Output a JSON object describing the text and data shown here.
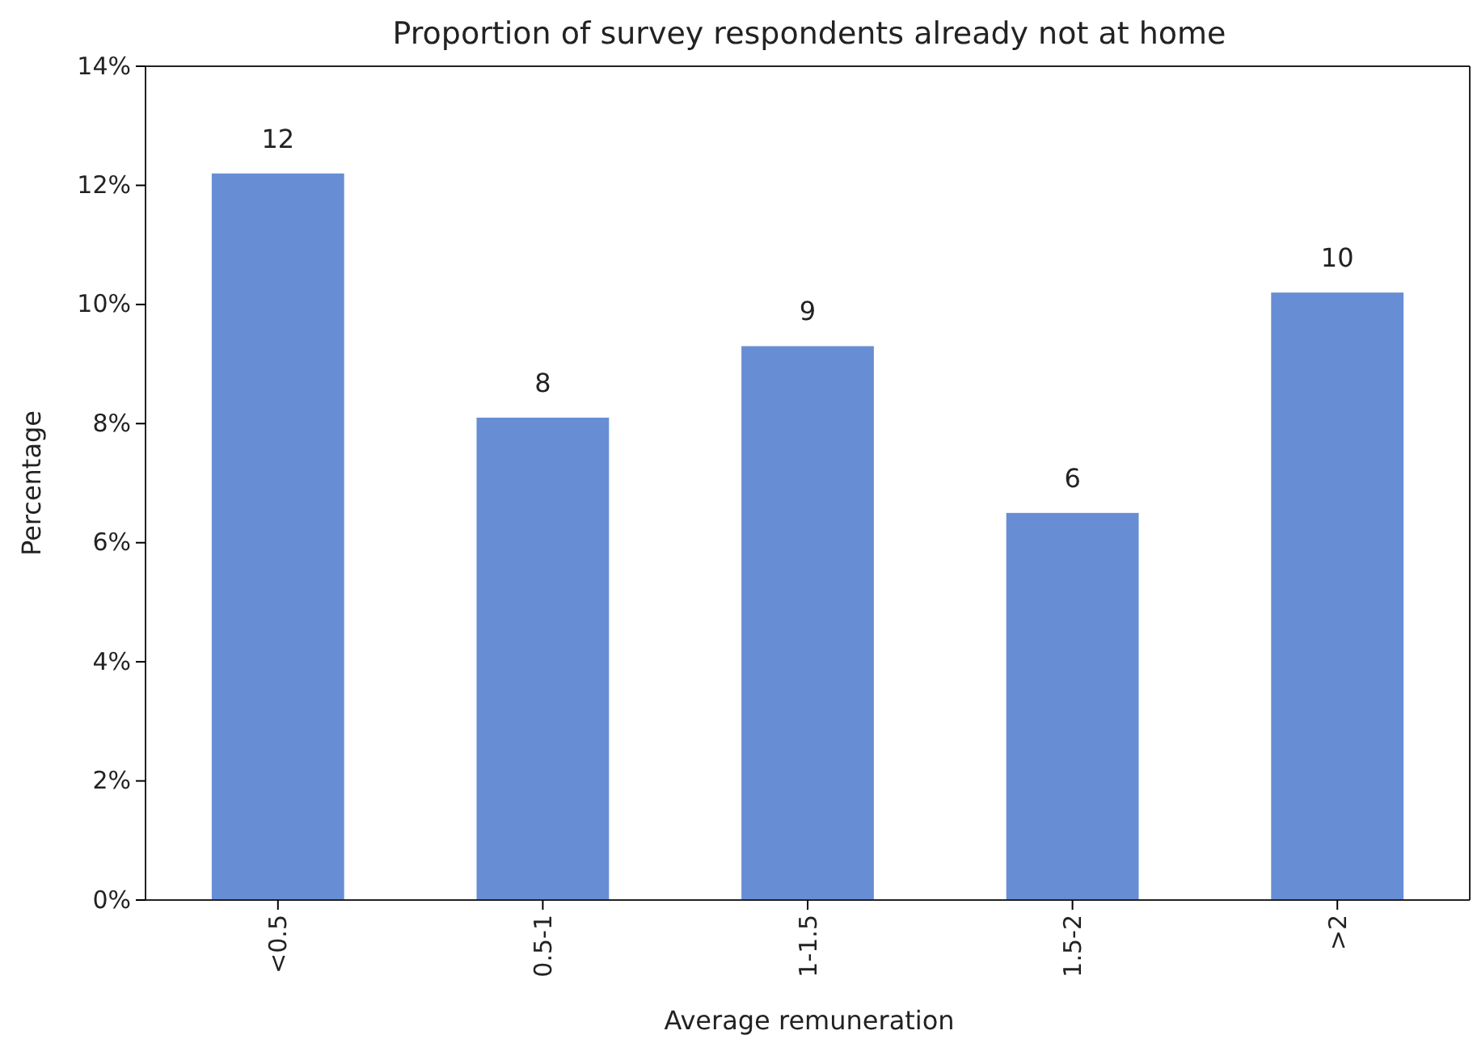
{
  "chart_data": {
    "type": "bar",
    "title": "Proportion of survey respondents already not at home",
    "xlabel": "Average remuneration",
    "ylabel": "Percentage",
    "categories": [
      "<0.5",
      "0.5-1",
      "1-1.5",
      "1.5-2",
      ">2"
    ],
    "values": [
      12.2,
      8.1,
      9.3,
      6.5,
      10.2
    ],
    "value_labels": [
      "12",
      "8",
      "9",
      "6",
      "10"
    ],
    "color": "#678ed4",
    "ylim": [
      0,
      14
    ],
    "yticks": [
      {
        "value": 0,
        "label": "0%"
      },
      {
        "value": 2,
        "label": "2%"
      },
      {
        "value": 4,
        "label": "4%"
      },
      {
        "value": 6,
        "label": "6%"
      },
      {
        "value": 8,
        "label": "8%"
      },
      {
        "value": 10,
        "label": "10%"
      },
      {
        "value": 12,
        "label": "12%"
      },
      {
        "value": 14,
        "label": "14%"
      }
    ],
    "grid": false
  }
}
